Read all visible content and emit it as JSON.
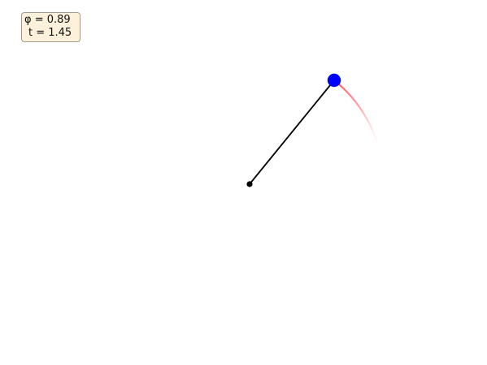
{
  "info": {
    "phi_text": "φ = 0.89",
    "t_text": "t = 1.45"
  },
  "colors": {
    "background": "#ffffff",
    "rod": "#000000",
    "pivot": "#000000",
    "bob": "#0000ff",
    "trail": "#ff4d5a",
    "box_fill": "#fdf1dc",
    "box_border": "#a39a8a"
  },
  "icons": {
    "pivot": "pivot-point-icon",
    "bob": "pendulum-bob-icon"
  }
}
